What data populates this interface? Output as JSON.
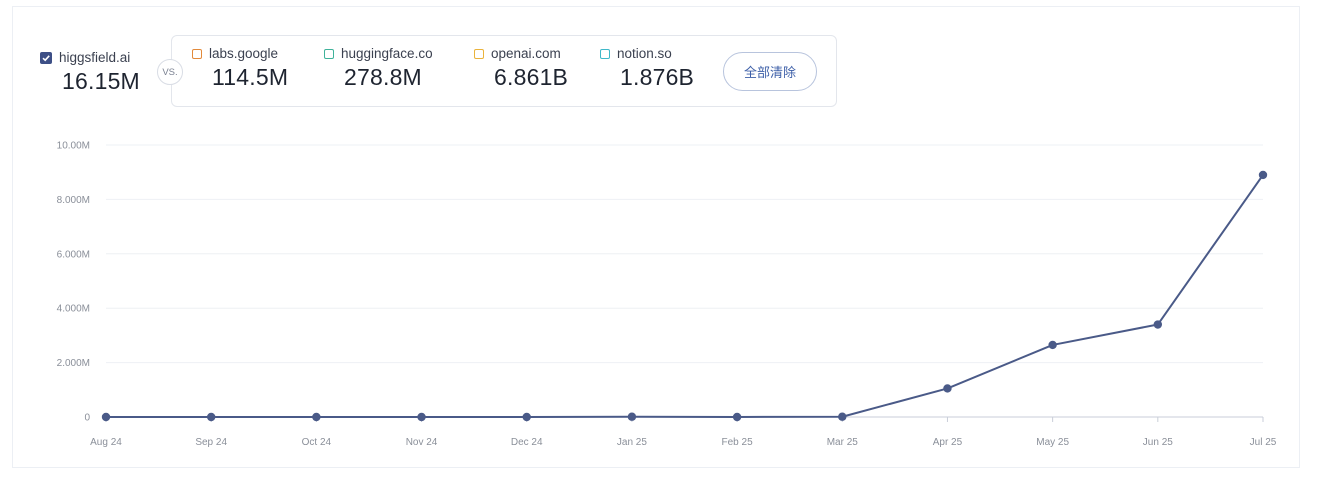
{
  "legend": {
    "primary": {
      "name": "higgsfield.ai",
      "value": "16.15M",
      "checked": true,
      "color": "#3d4f86"
    },
    "vs_label": "VS.",
    "competitors": [
      {
        "name": "labs.google",
        "value": "114.5M",
        "color": "#e28a3b"
      },
      {
        "name": "huggingface.co",
        "value": "278.8M",
        "color": "#3fb29a"
      },
      {
        "name": "openai.com",
        "value": "6.861B",
        "color": "#eab33c"
      },
      {
        "name": "notion.so",
        "value": "1.876B",
        "color": "#3fb8c9"
      }
    ],
    "clear_label": "全部清除"
  },
  "chart_data": {
    "type": "line",
    "x": [
      "Aug 24",
      "Sep 24",
      "Oct 24",
      "Nov 24",
      "Dec 24",
      "Jan 25",
      "Feb 25",
      "Mar 25",
      "Apr 25",
      "May 25",
      "Jun 25",
      "Jul 25"
    ],
    "series": [
      {
        "name": "higgsfield.ai",
        "color": "#4a5a88",
        "values": [
          0,
          0,
          0,
          0,
          0,
          10000,
          0,
          10000,
          1050000,
          2650000,
          3400000,
          8900000
        ]
      }
    ],
    "y_ticks": [
      0,
      2000000,
      4000000,
      6000000,
      8000000,
      10000000
    ],
    "y_tick_labels": [
      "0",
      "2.000M",
      "4.000M",
      "6.000M",
      "8.000M",
      "10.00M"
    ],
    "ylim": [
      0,
      10000000
    ],
    "grid": true
  }
}
